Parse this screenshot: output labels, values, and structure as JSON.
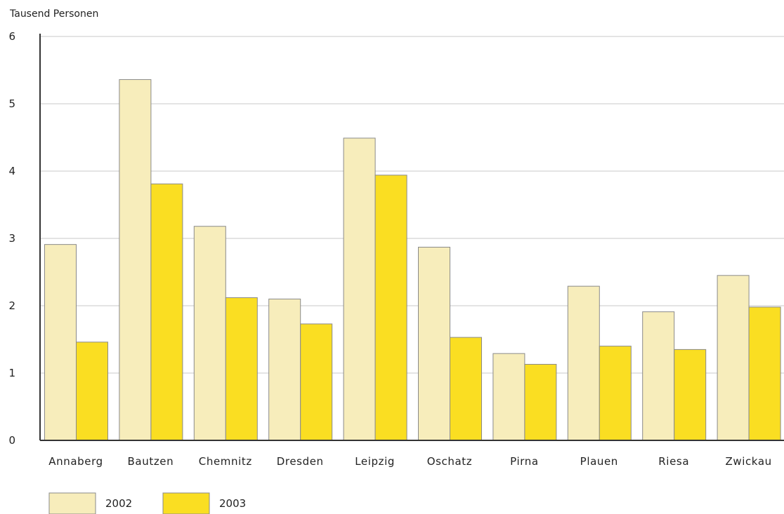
{
  "chart_data": {
    "type": "bar",
    "unit_label": "Tausend Personen",
    "categories": [
      "Annaberg",
      "Bautzen",
      "Chemnitz",
      "Dresden",
      "Leipzig",
      "Oschatz",
      "Pirna",
      "Plauen",
      "Riesa",
      "Zwickau"
    ],
    "series": [
      {
        "name": "2002",
        "color": "#f7edbb",
        "values": [
          2.91,
          5.36,
          3.18,
          2.1,
          4.49,
          2.87,
          1.29,
          2.29,
          1.91,
          2.45
        ]
      },
      {
        "name": "2003",
        "color": "#fade22",
        "values": [
          1.46,
          3.81,
          2.12,
          1.73,
          3.94,
          1.53,
          1.13,
          1.4,
          1.35,
          1.98
        ]
      }
    ],
    "ylim": [
      0,
      6
    ],
    "yticks": [
      0,
      1,
      2,
      3,
      4,
      5,
      6
    ],
    "grid": true,
    "legend_position": "bottom-left"
  }
}
